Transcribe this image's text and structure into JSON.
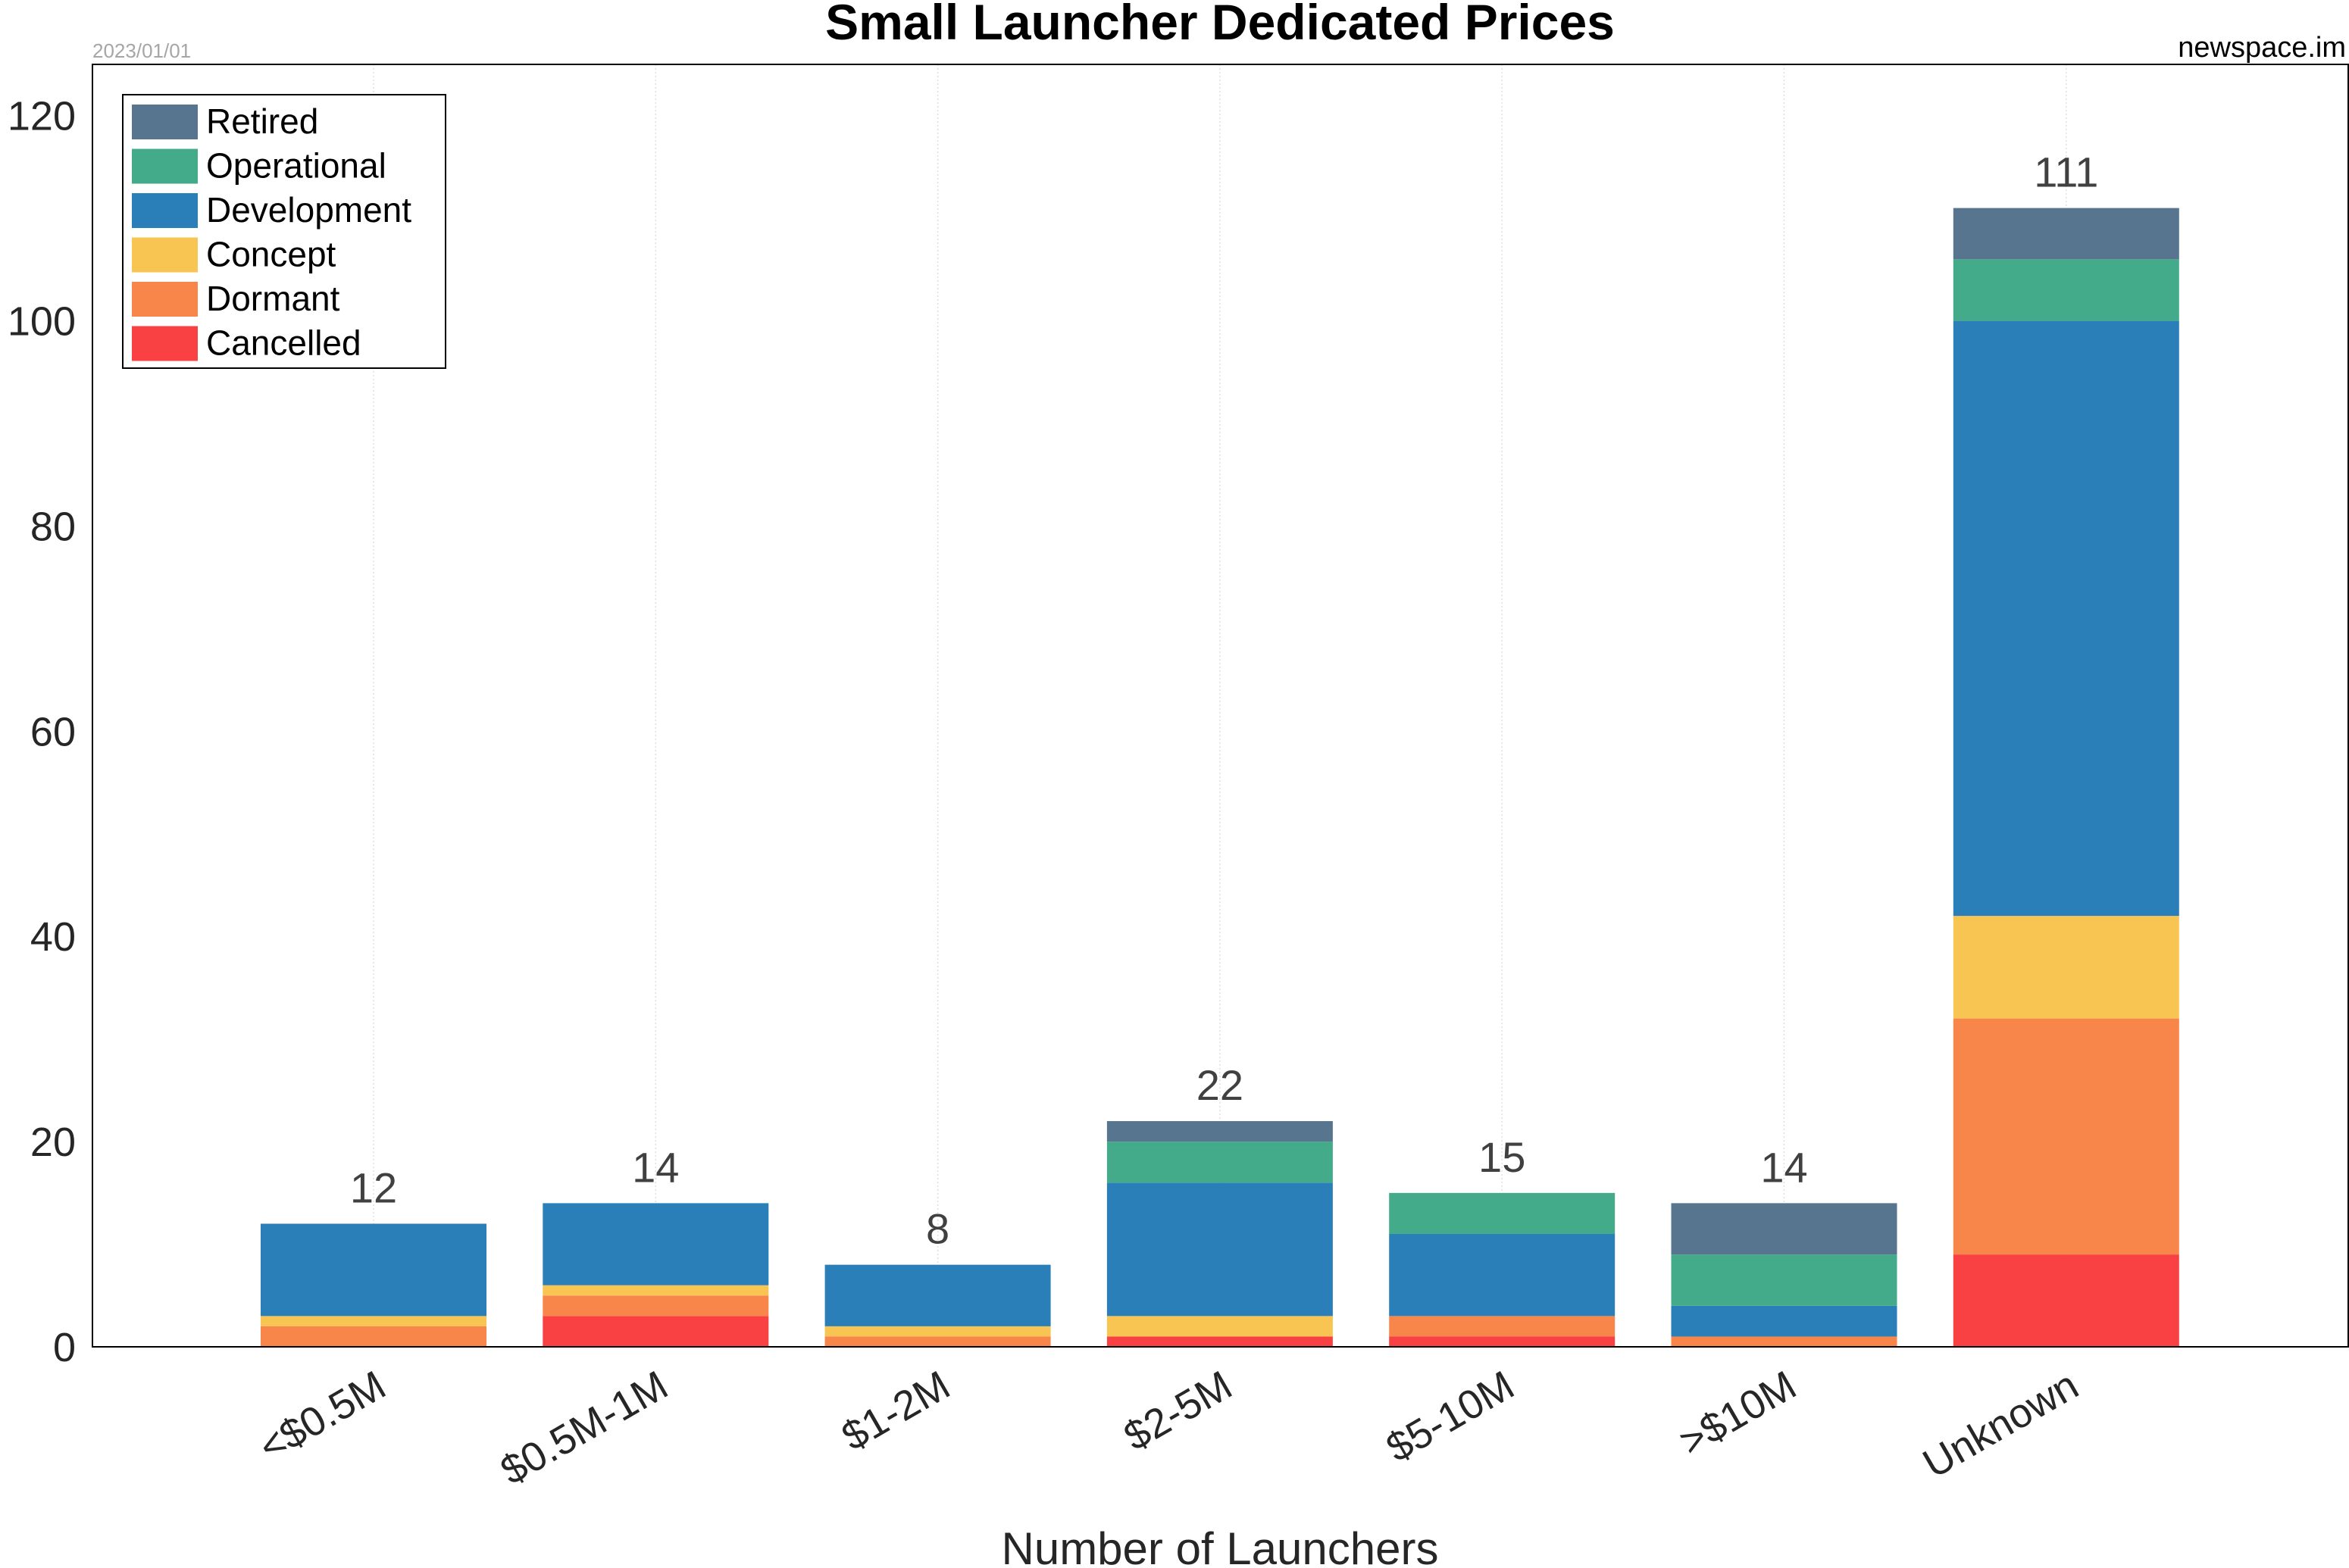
{
  "chart_data": {
    "type": "bar",
    "stacked": true,
    "title": "Small Launcher Dedicated Prices",
    "date_text": "2023/01/01",
    "source_text": "newspace.im",
    "xlabel": "Number of Launchers",
    "ylabel": "",
    "ylim": [
      0,
      125
    ],
    "yticks": [
      "0",
      "20",
      "40",
      "60",
      "80",
      "100",
      "120"
    ],
    "grid": "vertical gridlines at categories",
    "legend_position": "top-left",
    "categories": [
      "<$0.5M",
      "$0.5M-1M",
      "$1-2M",
      "$2-5M",
      "$5-10M",
      ">$10M",
      "Unknown"
    ],
    "totals": [
      "12",
      "14",
      "8",
      "22",
      "15",
      "14",
      "111"
    ],
    "series": [
      {
        "name": "Cancelled",
        "color": "#f94144",
        "values": [
          0,
          3,
          0,
          1,
          1,
          0,
          9
        ]
      },
      {
        "name": "Dormant",
        "color": "#f8864a",
        "values": [
          2,
          2,
          1,
          0,
          2,
          1,
          23
        ]
      },
      {
        "name": "Concept",
        "color": "#f8c552",
        "values": [
          1,
          1,
          1,
          2,
          0,
          0,
          10
        ]
      },
      {
        "name": "Development",
        "color": "#2a7fb8",
        "values": [
          9,
          8,
          6,
          13,
          8,
          3,
          58
        ]
      },
      {
        "name": "Operational",
        "color": "#44ab8a",
        "values": [
          0,
          0,
          0,
          4,
          4,
          5,
          6
        ]
      },
      {
        "name": "Retired",
        "color": "#58758f",
        "values": [
          0,
          0,
          0,
          2,
          0,
          5,
          5
        ]
      }
    ],
    "legend_order": [
      "Retired",
      "Operational",
      "Development",
      "Concept",
      "Dormant",
      "Cancelled"
    ]
  }
}
